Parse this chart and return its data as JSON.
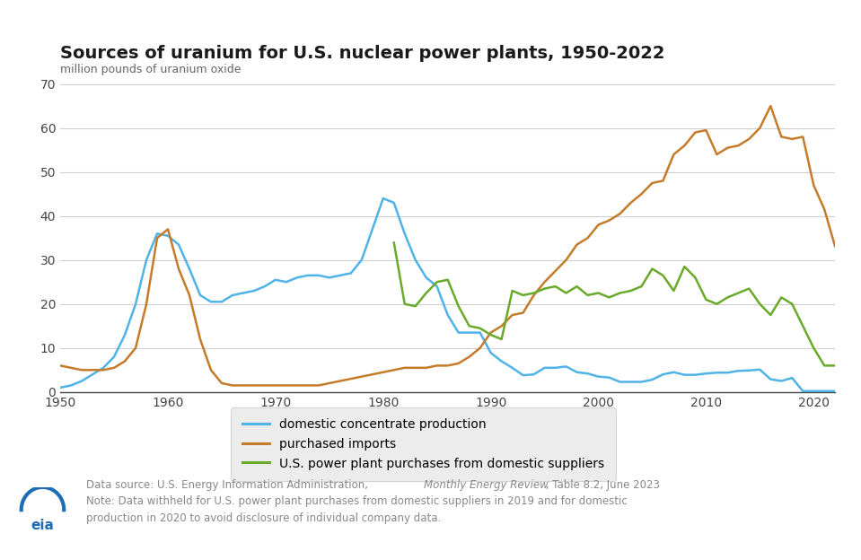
{
  "title": "Sources of uranium for U.S. nuclear power plants, 1950-2022",
  "ylabel": "million pounds of uranium oxide",
  "ylim": [
    0,
    70
  ],
  "yticks": [
    0,
    10,
    20,
    30,
    40,
    50,
    60,
    70
  ],
  "xlim": [
    1950,
    2022
  ],
  "xticks": [
    1950,
    1960,
    1970,
    1980,
    1990,
    2000,
    2010,
    2020
  ],
  "bg_color": "#ffffff",
  "grid_color": "#d0d0d0",
  "line_domestic_color": "#4fb3e8",
  "line_imports_color": "#c47c2b",
  "line_purchases_color": "#6aaa2a",
  "legend_bg": "#e8e8e8",
  "footnote_color": "#888888",
  "domestic_production": {
    "years": [
      1950,
      1951,
      1952,
      1953,
      1954,
      1955,
      1956,
      1957,
      1958,
      1959,
      1960,
      1961,
      1962,
      1963,
      1964,
      1965,
      1966,
      1967,
      1968,
      1969,
      1970,
      1971,
      1972,
      1973,
      1974,
      1975,
      1976,
      1977,
      1978,
      1979,
      1980,
      1981,
      1982,
      1983,
      1984,
      1985,
      1986,
      1987,
      1988,
      1989,
      1990,
      1991,
      1992,
      1993,
      1994,
      1995,
      1996,
      1997,
      1998,
      1999,
      2000,
      2001,
      2002,
      2003,
      2004,
      2005,
      2006,
      2007,
      2008,
      2009,
      2010,
      2011,
      2012,
      2013,
      2014,
      2015,
      2016,
      2017,
      2018,
      2019,
      2021,
      2022
    ],
    "values": [
      1.0,
      1.5,
      2.5,
      4.0,
      5.5,
      8.0,
      13.0,
      20.0,
      30.0,
      36.0,
      35.5,
      33.5,
      28.0,
      22.0,
      20.5,
      20.5,
      22.0,
      22.5,
      23.0,
      24.0,
      25.5,
      25.0,
      26.0,
      26.5,
      26.5,
      26.0,
      26.5,
      27.0,
      30.0,
      37.0,
      44.0,
      43.0,
      36.0,
      30.0,
      26.0,
      24.0,
      17.5,
      13.5,
      13.5,
      13.5,
      8.9,
      7.0,
      5.5,
      3.8,
      4.0,
      5.5,
      5.5,
      5.8,
      4.5,
      4.2,
      3.5,
      3.3,
      2.3,
      2.3,
      2.3,
      2.8,
      4.0,
      4.5,
      3.9,
      3.9,
      4.2,
      4.4,
      4.4,
      4.8,
      4.9,
      5.1,
      2.9,
      2.5,
      3.2,
      0.2,
      0.2,
      0.2
    ]
  },
  "purchased_imports": {
    "years": [
      1950,
      1951,
      1952,
      1953,
      1954,
      1955,
      1956,
      1957,
      1958,
      1959,
      1960,
      1961,
      1962,
      1963,
      1964,
      1965,
      1966,
      1967,
      1968,
      1969,
      1970,
      1971,
      1972,
      1973,
      1974,
      1975,
      1976,
      1977,
      1978,
      1979,
      1980,
      1981,
      1982,
      1983,
      1984,
      1985,
      1986,
      1987,
      1988,
      1989,
      1990,
      1991,
      1992,
      1993,
      1994,
      1995,
      1996,
      1997,
      1998,
      1999,
      2000,
      2001,
      2002,
      2003,
      2004,
      2005,
      2006,
      2007,
      2008,
      2009,
      2010,
      2011,
      2012,
      2013,
      2014,
      2015,
      2016,
      2017,
      2018,
      2019,
      2020,
      2021,
      2022
    ],
    "values": [
      6.0,
      5.5,
      5.0,
      5.0,
      5.0,
      5.5,
      7.0,
      10.0,
      20.0,
      35.0,
      37.0,
      28.0,
      22.0,
      12.0,
      5.0,
      2.0,
      1.5,
      1.5,
      1.5,
      1.5,
      1.5,
      1.5,
      1.5,
      1.5,
      1.5,
      2.0,
      2.5,
      3.0,
      3.5,
      4.0,
      4.5,
      5.0,
      5.5,
      5.5,
      5.5,
      6.0,
      6.0,
      6.5,
      8.0,
      10.0,
      13.5,
      15.0,
      17.5,
      18.0,
      22.0,
      25.0,
      27.5,
      30.0,
      33.5,
      35.0,
      38.0,
      39.0,
      40.5,
      43.0,
      45.0,
      47.5,
      48.0,
      54.0,
      56.0,
      59.0,
      59.5,
      54.0,
      55.5,
      56.0,
      57.5,
      60.0,
      65.0,
      58.0,
      57.5,
      58.0,
      47.0,
      41.5,
      33.0
    ]
  },
  "domestic_purchases": {
    "years": [
      1981,
      1982,
      1983,
      1984,
      1985,
      1986,
      1987,
      1988,
      1989,
      1990,
      1991,
      1992,
      1993,
      1994,
      1995,
      1996,
      1997,
      1998,
      1999,
      2000,
      2001,
      2002,
      2003,
      2004,
      2005,
      2006,
      2007,
      2008,
      2009,
      2010,
      2011,
      2012,
      2013,
      2014,
      2015,
      2016,
      2017,
      2018,
      2020,
      2021,
      2022
    ],
    "values": [
      34.0,
      20.0,
      19.5,
      22.5,
      25.0,
      25.5,
      19.5,
      15.0,
      14.5,
      13.0,
      12.0,
      23.0,
      22.0,
      22.5,
      23.5,
      24.0,
      22.5,
      24.0,
      22.0,
      22.5,
      21.5,
      22.5,
      23.0,
      24.0,
      28.0,
      26.5,
      23.0,
      28.5,
      26.0,
      21.0,
      20.0,
      21.5,
      22.5,
      23.5,
      20.0,
      17.5,
      21.5,
      20.0,
      10.0,
      6.0,
      6.0
    ]
  }
}
